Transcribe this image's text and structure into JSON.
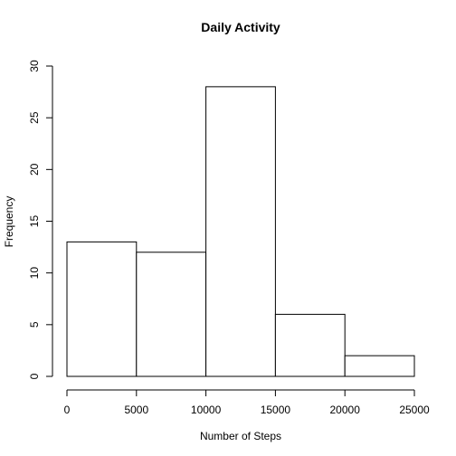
{
  "chart_data": {
    "type": "bar",
    "title": "Daily Activity",
    "xlabel": "Number of Steps",
    "ylabel": "Frequency",
    "bins": [
      {
        "start": 0,
        "end": 5000,
        "count": 13
      },
      {
        "start": 5000,
        "end": 10000,
        "count": 12
      },
      {
        "start": 10000,
        "end": 15000,
        "count": 28
      },
      {
        "start": 15000,
        "end": 20000,
        "count": 6
      },
      {
        "start": 20000,
        "end": 25000,
        "count": 2
      }
    ],
    "xlim": [
      0,
      25000
    ],
    "ylim": [
      0,
      30
    ],
    "xticks": [
      "0",
      "5000",
      "10000",
      "15000",
      "20000",
      "25000"
    ],
    "yticks": [
      "0",
      "5",
      "10",
      "15",
      "20",
      "25",
      "30"
    ],
    "grid": false,
    "bar_fill": "#ffffff",
    "bar_stroke": "#000000"
  }
}
